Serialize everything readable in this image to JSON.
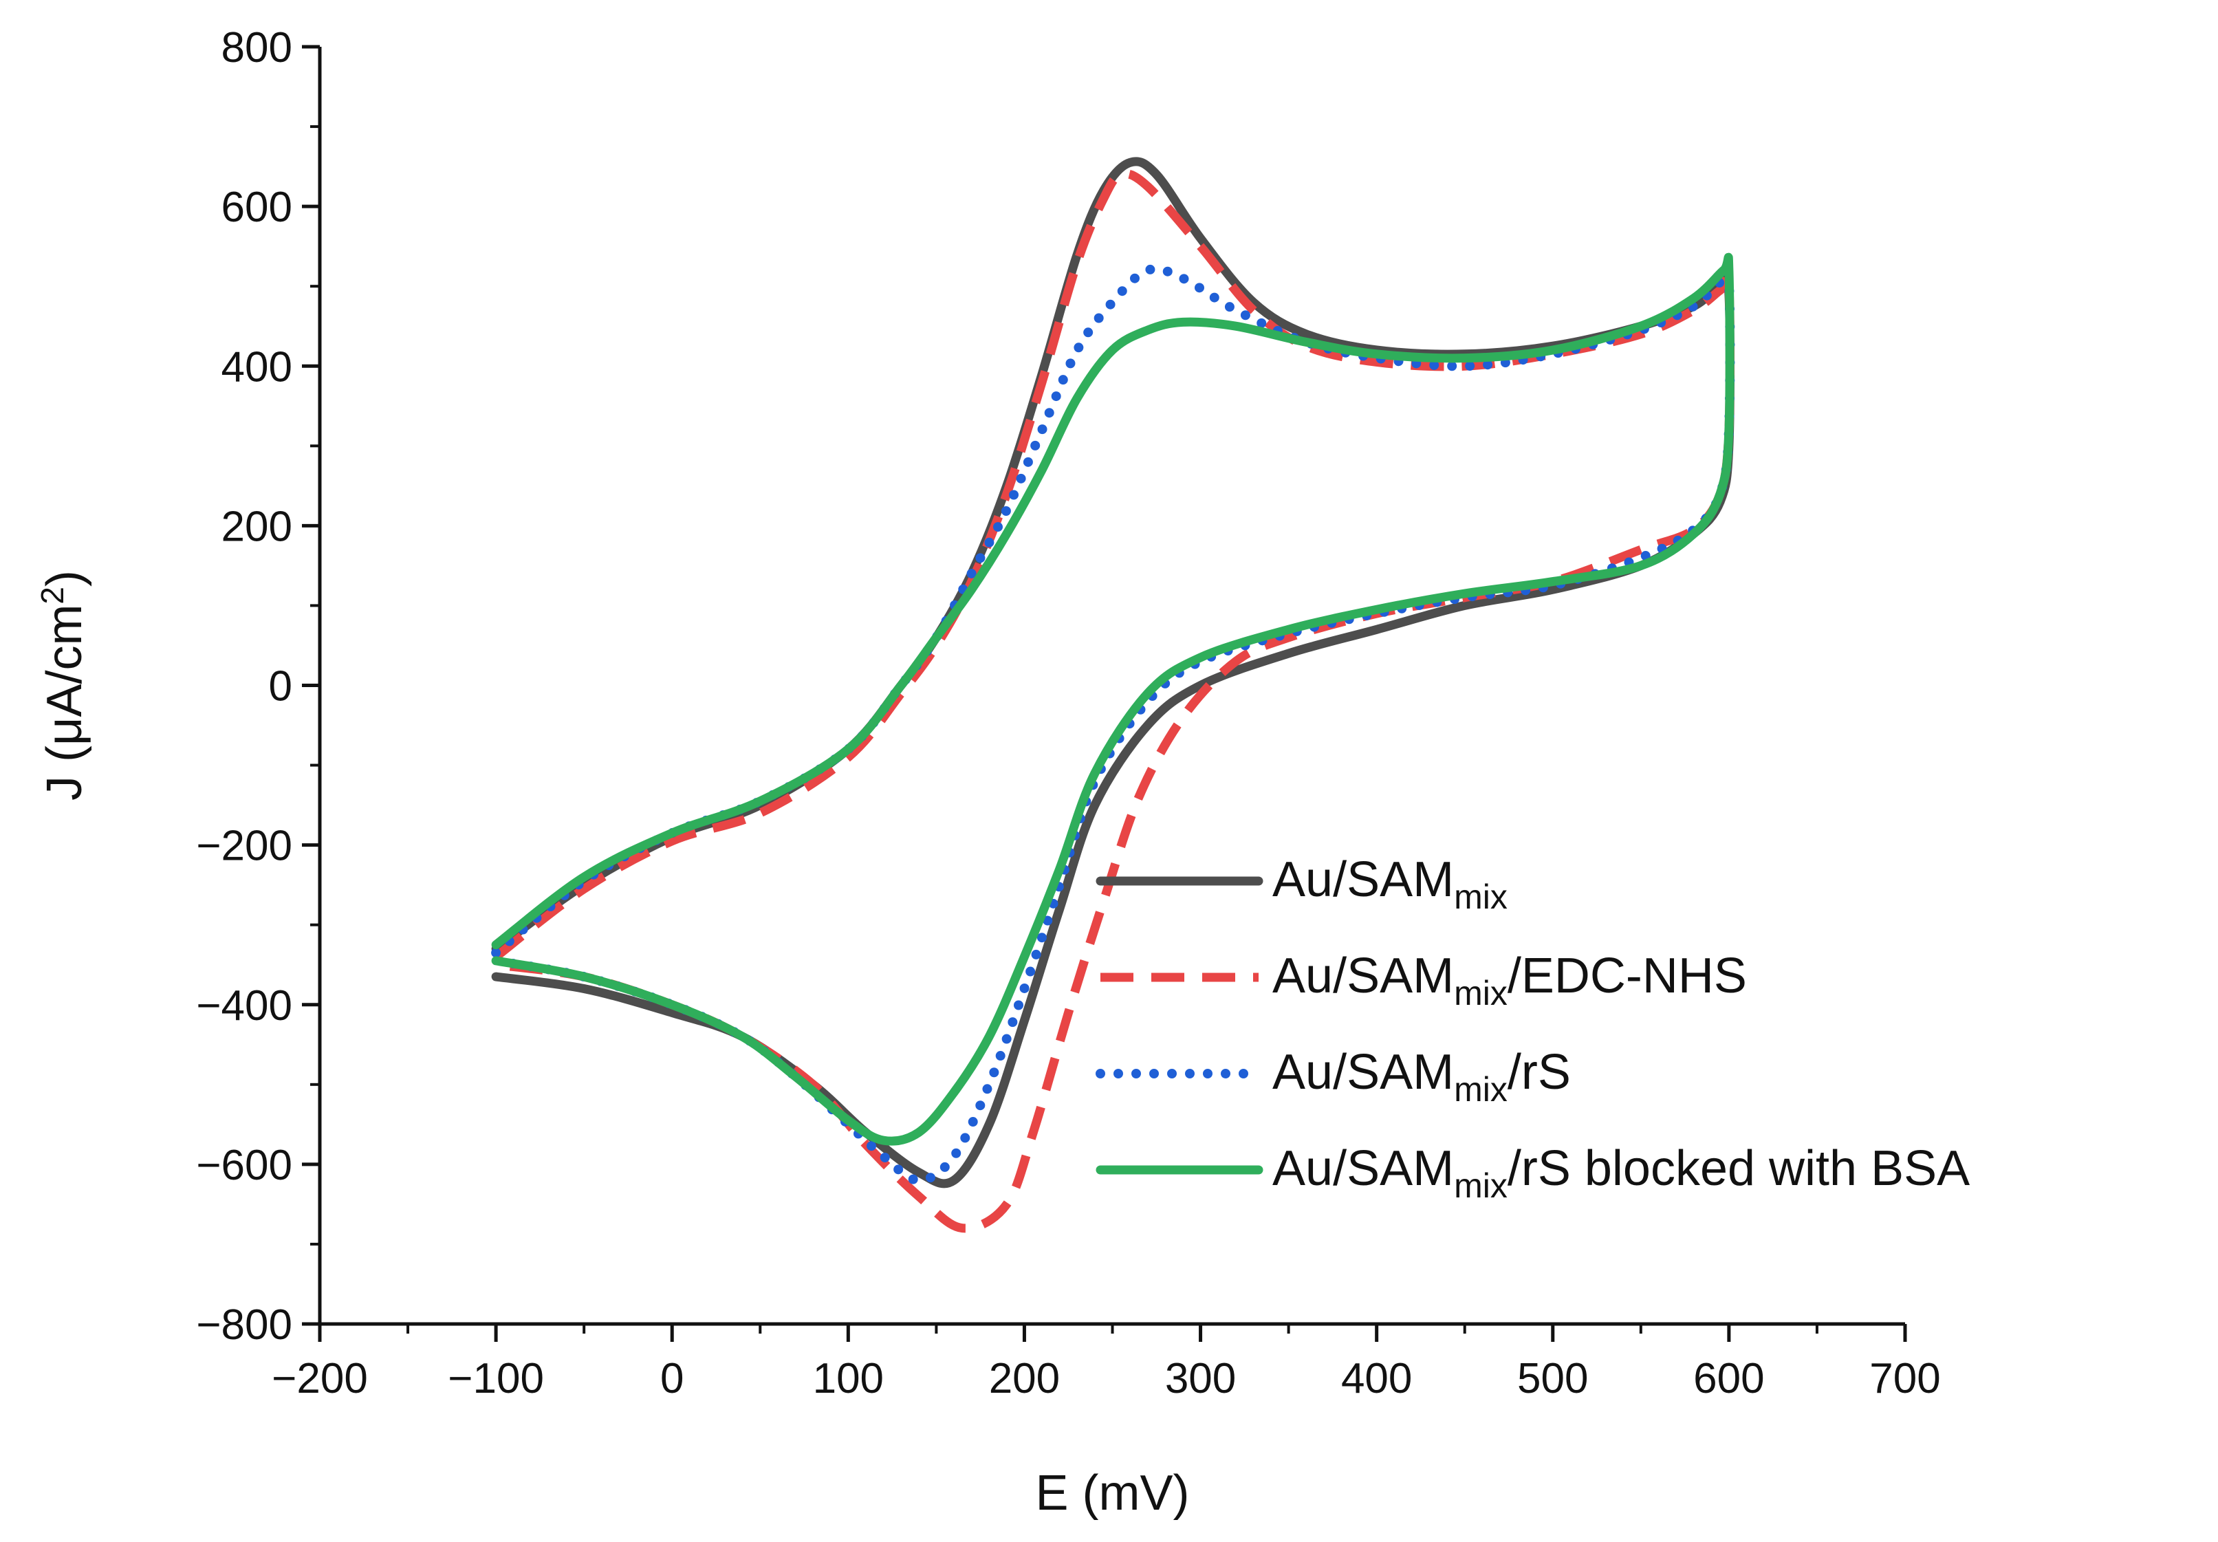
{
  "chart_data": {
    "type": "line",
    "title": "",
    "xlabel": "E (mV)",
    "ylabel_main": "J (μA/cm",
    "ylabel_sup": "2",
    "ylabel_tail": ")",
    "xlim": [
      -200,
      700
    ],
    "ylim": [
      -800,
      800
    ],
    "x_ticks": [
      -200,
      -100,
      0,
      100,
      200,
      300,
      400,
      500,
      600,
      700
    ],
    "y_ticks": [
      -800,
      -600,
      -400,
      -200,
      0,
      200,
      400,
      600,
      800
    ],
    "x_tick_labels": [
      "−200",
      "−100",
      "0",
      "100",
      "200",
      "300",
      "400",
      "500",
      "600",
      "700"
    ],
    "y_tick_labels": [
      "−800",
      "−600",
      "−400",
      "−200",
      "0",
      "200",
      "400",
      "600",
      "800"
    ],
    "grid": false,
    "legend_position": "bottom-right",
    "series": [
      {
        "name": "Au/SAMmix",
        "legend_parts": [
          "Au/SAM",
          "mix",
          ""
        ],
        "color": "#4d4d4d",
        "style": "solid",
        "forward": [
          [
            -100,
            -330
          ],
          [
            -50,
            -250
          ],
          [
            0,
            -190
          ],
          [
            50,
            -150
          ],
          [
            100,
            -80
          ],
          [
            130,
            0
          ],
          [
            150,
            60
          ],
          [
            170,
            140
          ],
          [
            190,
            250
          ],
          [
            210,
            390
          ],
          [
            230,
            540
          ],
          [
            245,
            620
          ],
          [
            260,
            655
          ],
          [
            275,
            640
          ],
          [
            300,
            560
          ],
          [
            330,
            480
          ],
          [
            360,
            440
          ],
          [
            400,
            420
          ],
          [
            450,
            415
          ],
          [
            500,
            425
          ],
          [
            550,
            450
          ],
          [
            580,
            475
          ],
          [
            595,
            500
          ]
        ],
        "reverse": [
          [
            600,
            490
          ],
          [
            600,
            300
          ],
          [
            595,
            230
          ],
          [
            580,
            190
          ],
          [
            550,
            150
          ],
          [
            500,
            120
          ],
          [
            450,
            100
          ],
          [
            400,
            70
          ],
          [
            350,
            40
          ],
          [
            300,
            0
          ],
          [
            270,
            -50
          ],
          [
            240,
            -150
          ],
          [
            220,
            -280
          ],
          [
            200,
            -420
          ],
          [
            180,
            -550
          ],
          [
            160,
            -620
          ],
          [
            140,
            -610
          ],
          [
            110,
            -560
          ],
          [
            80,
            -500
          ],
          [
            40,
            -440
          ],
          [
            0,
            -410
          ],
          [
            -50,
            -380
          ],
          [
            -100,
            -365
          ]
        ]
      },
      {
        "name": "Au/SAMmix/EDC-NHS",
        "legend_parts": [
          "Au/SAM",
          "mix",
          "/EDC-NHS"
        ],
        "color": "#e84545",
        "style": "dashed",
        "forward": [
          [
            -100,
            -340
          ],
          [
            -50,
            -255
          ],
          [
            0,
            -195
          ],
          [
            50,
            -160
          ],
          [
            100,
            -90
          ],
          [
            130,
            -10
          ],
          [
            150,
            50
          ],
          [
            170,
            130
          ],
          [
            190,
            240
          ],
          [
            210,
            380
          ],
          [
            230,
            530
          ],
          [
            245,
            610
          ],
          [
            255,
            640
          ],
          [
            270,
            625
          ],
          [
            300,
            550
          ],
          [
            330,
            470
          ],
          [
            360,
            425
          ],
          [
            400,
            405
          ],
          [
            450,
            400
          ],
          [
            500,
            415
          ],
          [
            550,
            440
          ],
          [
            580,
            470
          ],
          [
            595,
            495
          ]
        ],
        "reverse": [
          [
            600,
            500
          ],
          [
            600,
            320
          ],
          [
            595,
            240
          ],
          [
            580,
            195
          ],
          [
            550,
            170
          ],
          [
            500,
            130
          ],
          [
            450,
            110
          ],
          [
            400,
            90
          ],
          [
            350,
            60
          ],
          [
            320,
            30
          ],
          [
            290,
            -40
          ],
          [
            265,
            -140
          ],
          [
            245,
            -270
          ],
          [
            225,
            -410
          ],
          [
            205,
            -560
          ],
          [
            190,
            -650
          ],
          [
            165,
            -680
          ],
          [
            140,
            -640
          ],
          [
            110,
            -575
          ],
          [
            80,
            -500
          ],
          [
            40,
            -440
          ],
          [
            0,
            -400
          ],
          [
            -50,
            -365
          ],
          [
            -100,
            -350
          ]
        ]
      },
      {
        "name": "Au/SAMmix/rS",
        "legend_parts": [
          "Au/SAM",
          "mix",
          "/rS"
        ],
        "color": "#1f5fd6",
        "style": "dotted",
        "forward": [
          [
            -100,
            -335
          ],
          [
            -50,
            -245
          ],
          [
            0,
            -185
          ],
          [
            50,
            -145
          ],
          [
            100,
            -80
          ],
          [
            130,
            0
          ],
          [
            150,
            60
          ],
          [
            170,
            140
          ],
          [
            190,
            220
          ],
          [
            210,
            320
          ],
          [
            230,
            420
          ],
          [
            250,
            480
          ],
          [
            270,
            520
          ],
          [
            290,
            510
          ],
          [
            320,
            470
          ],
          [
            360,
            430
          ],
          [
            400,
            410
          ],
          [
            450,
            400
          ],
          [
            500,
            415
          ],
          [
            550,
            445
          ],
          [
            580,
            475
          ],
          [
            595,
            505
          ]
        ],
        "reverse": [
          [
            600,
            505
          ],
          [
            600,
            320
          ],
          [
            595,
            240
          ],
          [
            580,
            195
          ],
          [
            550,
            160
          ],
          [
            500,
            125
          ],
          [
            450,
            110
          ],
          [
            400,
            90
          ],
          [
            350,
            65
          ],
          [
            300,
            30
          ],
          [
            270,
            -20
          ],
          [
            240,
            -120
          ],
          [
            220,
            -250
          ],
          [
            200,
            -380
          ],
          [
            180,
            -500
          ],
          [
            160,
            -590
          ],
          [
            140,
            -620
          ],
          [
            120,
            -590
          ],
          [
            100,
            -550
          ],
          [
            70,
            -490
          ],
          [
            40,
            -440
          ],
          [
            0,
            -400
          ],
          [
            -50,
            -365
          ],
          [
            -100,
            -345
          ]
        ]
      },
      {
        "name": "Au/SAMmix/rS blocked with BSA",
        "legend_parts": [
          "Au/SAM",
          "mix",
          "/rS blocked with BSA"
        ],
        "color": "#2fae5b",
        "style": "solid",
        "forward": [
          [
            -100,
            -325
          ],
          [
            -50,
            -240
          ],
          [
            0,
            -185
          ],
          [
            50,
            -145
          ],
          [
            100,
            -80
          ],
          [
            130,
            0
          ],
          [
            150,
            60
          ],
          [
            170,
            120
          ],
          [
            190,
            190
          ],
          [
            210,
            270
          ],
          [
            230,
            360
          ],
          [
            250,
            420
          ],
          [
            270,
            445
          ],
          [
            290,
            455
          ],
          [
            320,
            450
          ],
          [
            360,
            430
          ],
          [
            400,
            415
          ],
          [
            450,
            410
          ],
          [
            500,
            420
          ],
          [
            550,
            450
          ],
          [
            580,
            485
          ],
          [
            597,
            520
          ]
        ],
        "reverse": [
          [
            600,
            520
          ],
          [
            600,
            320
          ],
          [
            595,
            240
          ],
          [
            580,
            190
          ],
          [
            550,
            150
          ],
          [
            500,
            130
          ],
          [
            450,
            115
          ],
          [
            400,
            95
          ],
          [
            350,
            70
          ],
          [
            300,
            35
          ],
          [
            270,
            -10
          ],
          [
            240,
            -110
          ],
          [
            220,
            -230
          ],
          [
            200,
            -340
          ],
          [
            180,
            -440
          ],
          [
            160,
            -510
          ],
          [
            140,
            -560
          ],
          [
            120,
            -570
          ],
          [
            100,
            -545
          ],
          [
            70,
            -490
          ],
          [
            40,
            -440
          ],
          [
            0,
            -400
          ],
          [
            -50,
            -365
          ],
          [
            -100,
            -345
          ]
        ]
      }
    ]
  }
}
